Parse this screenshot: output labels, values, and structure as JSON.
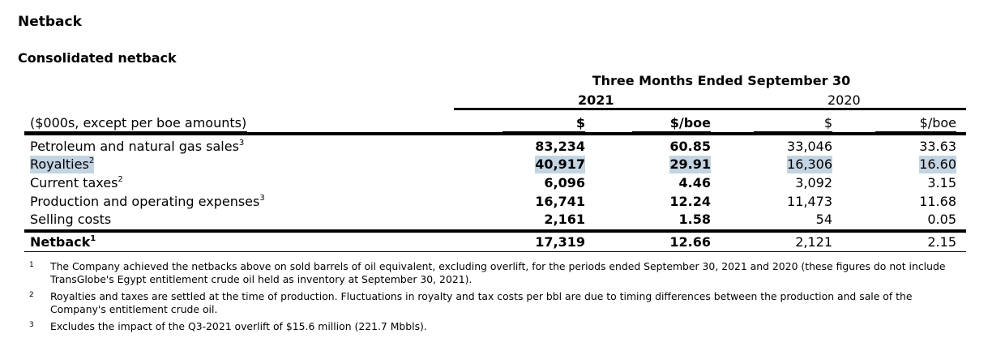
{
  "title": "Netback",
  "subtitle": "Consolidated netback",
  "period_header": "Three Months Ended September 30",
  "years": [
    "2021",
    "2020"
  ],
  "columns": {
    "label": "($000s, except per boe amounts)",
    "c1": "$",
    "c2": "$/boe",
    "c3": "$",
    "c4": "$/boe"
  },
  "rows": [
    {
      "label": "Petroleum and natural gas sales",
      "sup": "3",
      "c1": "83,234",
      "c2": "60.85",
      "c3": "33,046",
      "c4": "33.63"
    },
    {
      "label": "Royalties",
      "sup": "2",
      "c1": "40,917",
      "c2": "29.91",
      "c3": "16,306",
      "c4": "16.60"
    },
    {
      "label": "Current taxes",
      "sup": "2",
      "c1": "6,096",
      "c2": "4.46",
      "c3": "3,092",
      "c4": "3.15"
    },
    {
      "label": "Production and operating expenses",
      "sup": "3",
      "c1": "16,741",
      "c2": "12.24",
      "c3": "11,473",
      "c4": "11.68"
    },
    {
      "label": "Selling costs",
      "sup": "",
      "c1": "2,161",
      "c2": "1.58",
      "c3": "54",
      "c4": "0.05"
    }
  ],
  "total": {
    "label": "Netback",
    "sup": "1",
    "c1": "17,319",
    "c2": "12.66",
    "c3": "2,121",
    "c4": "2.15"
  },
  "footnotes": [
    {
      "mark": "1",
      "text": "The Company achieved the netbacks above on sold barrels of oil equivalent, excluding overlift, for the periods ended September 30, 2021 and 2020 (these figures do not include TransGlobe's Egypt entitlement crude oil held as inventory at September 30, 2021)."
    },
    {
      "mark": "2",
      "text": "Royalties and taxes are settled at the time of production. Fluctuations in royalty and tax costs per bbl are due to timing differences between the production and sale of the Company's entitlement crude oil."
    },
    {
      "mark": "3",
      "text": "Excludes the impact of the Q3-2021 overlift of $15.6 million (221.7 Mbbls)."
    }
  ],
  "colors": {
    "highlight": "#c3d4e2",
    "text": "#000000"
  }
}
